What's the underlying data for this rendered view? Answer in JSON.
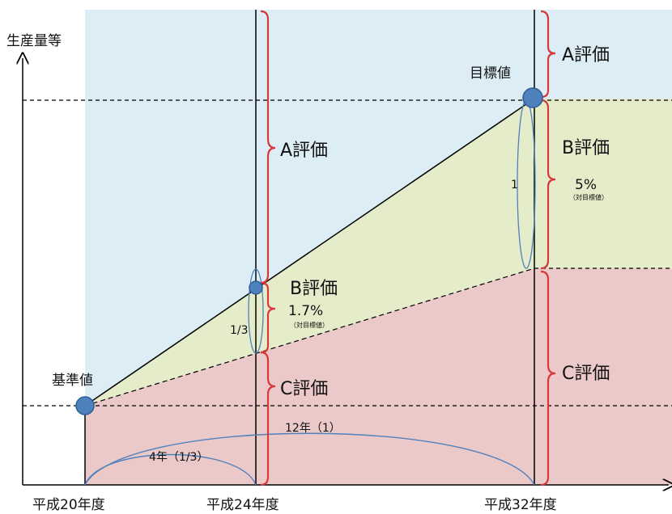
{
  "colors": {
    "blue": "#dcedf5",
    "green": "#e5ecc9",
    "red": "#ebc9c9",
    "brace": "#d9383a",
    "marker": "#4f81bd",
    "arc": "#4f81bd"
  },
  "axis": {
    "y_label": "生産量等",
    "x_ticks": [
      "平成20年度",
      "平成24年度",
      "平成32年度"
    ]
  },
  "points": {
    "base": "基準値",
    "target": "目標値"
  },
  "regions": {
    "mid_A": "A評価",
    "mid_B": "B評価",
    "mid_B_pct": "1.7%",
    "mid_B_note": "（対目標値）",
    "mid_C": "C評価",
    "right_A": "A評価",
    "right_B": "B評価",
    "right_B_pct": "5%",
    "right_B_note": "（対目標値）",
    "right_C": "C評価"
  },
  "ratios": {
    "mid": "1/3",
    "right": "1"
  },
  "spans": {
    "full": "12年（1）",
    "partial": "4年（1/3）"
  }
}
